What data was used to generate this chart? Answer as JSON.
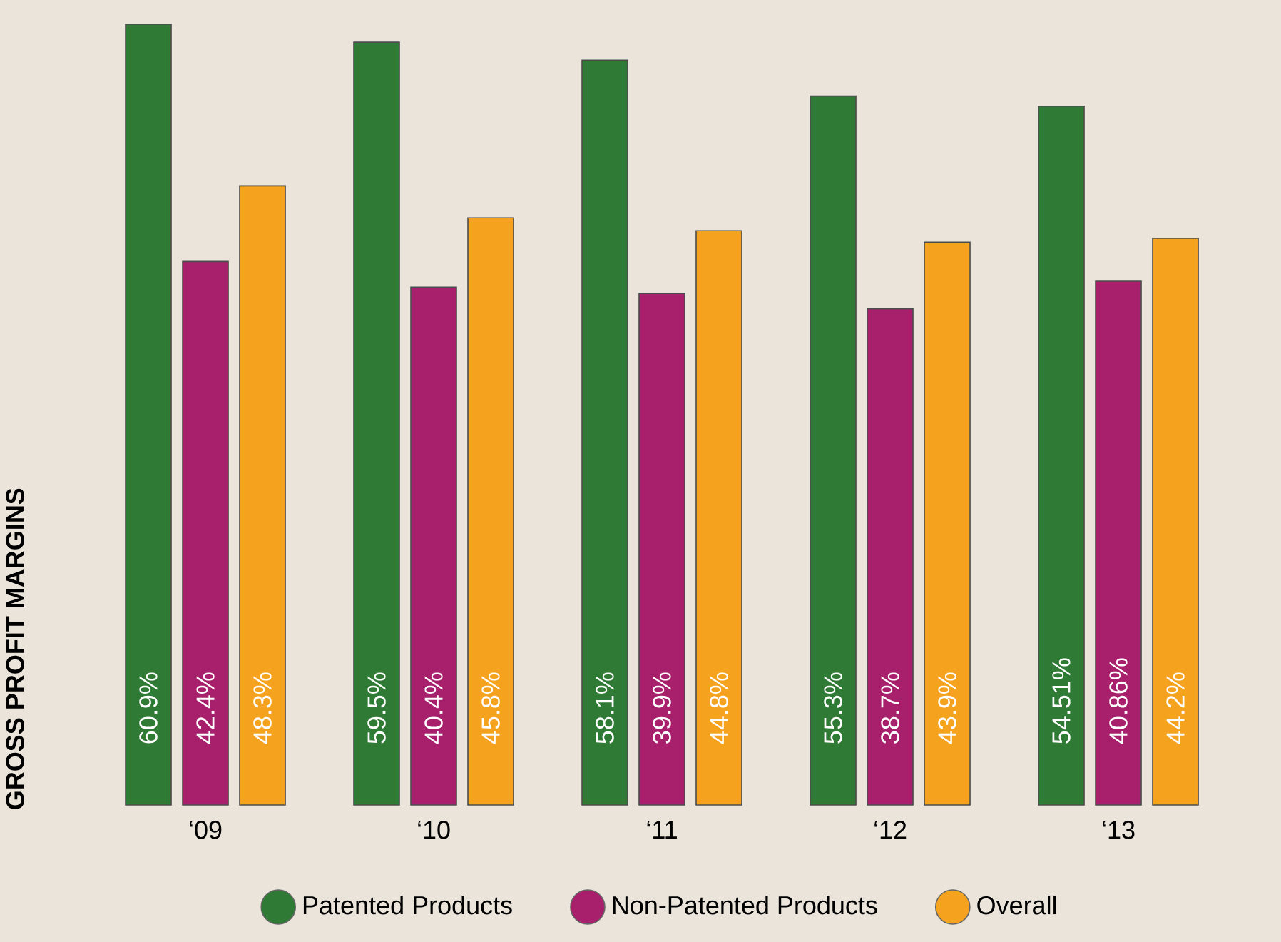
{
  "chart_data": {
    "type": "bar",
    "ylabel": "GROSS PROFIT MARGINS",
    "categories": [
      "‘09",
      "‘10",
      "‘11",
      "‘12",
      "‘13"
    ],
    "series": [
      {
        "name": "Patented Products",
        "color": "#2f7a35",
        "values": [
          60.9,
          59.5,
          58.1,
          55.3,
          54.51
        ],
        "value_labels": [
          "60.9%",
          "59.5%",
          "58.1%",
          "55.3%",
          "54.51%"
        ]
      },
      {
        "name": "Non-Patented Products",
        "color": "#a8206c",
        "values": [
          42.4,
          40.4,
          39.9,
          38.7,
          40.86
        ],
        "value_labels": [
          "42.4%",
          "40.4%",
          "39.9%",
          "38.7%",
          "40.86%"
        ]
      },
      {
        "name": "Overall",
        "color": "#f5a21f",
        "values": [
          48.3,
          45.8,
          44.8,
          43.9,
          44.2
        ],
        "value_labels": [
          "48.3%",
          "45.8%",
          "44.8%",
          "43.9%",
          "44.2%"
        ]
      }
    ],
    "legend": "bottom"
  }
}
